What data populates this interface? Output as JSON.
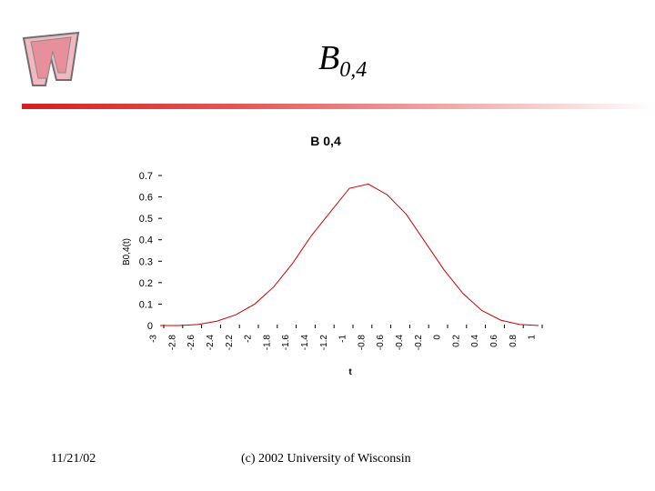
{
  "slide": {
    "title_main": "B",
    "title_sub": "0,4",
    "footer_date": "11/21/02",
    "footer_copyright": "(c) 2002 University of Wisconsin",
    "accent_color": "#d42020",
    "logo_icon": "university-w-logo-icon"
  },
  "chart_data": {
    "type": "line",
    "title": "B 0,4",
    "xlabel": "t",
    "ylabel": "B0,4(t)",
    "xlim": [
      -3,
      1
    ],
    "ylim": [
      0,
      0.7
    ],
    "xticks": [
      "-3",
      "-2.8",
      "-2.6",
      "-2.4",
      "-2.2",
      "-2",
      "-1.8",
      "-1.6",
      "-1.4",
      "-1.2",
      "-1",
      "-0.8",
      "-0.6",
      "-0.4",
      "-0.2",
      "0",
      "0.2",
      "0.4",
      "0.6",
      "0.8",
      "1"
    ],
    "yticks": [
      "0",
      "0.1",
      "0.2",
      "0.3",
      "0.4",
      "0.5",
      "0.6",
      "0.7"
    ],
    "grid": false,
    "line_color": "#cc0000",
    "series": [
      {
        "x": [
          -3,
          -2.8,
          -2.6,
          -2.4,
          -2.2,
          -2,
          -1.8,
          -1.6,
          -1.4,
          -1.2,
          -1,
          -0.8,
          -0.6,
          -0.4,
          -0.2,
          0,
          0.2,
          0.4,
          0.6,
          0.8,
          1
        ],
        "values": [
          0,
          0,
          0.005,
          0.02,
          0.05,
          0.1,
          0.18,
          0.29,
          0.42,
          0.53,
          0.64,
          0.66,
          0.61,
          0.52,
          0.39,
          0.26,
          0.15,
          0.07,
          0.025,
          0.005,
          0
        ]
      }
    ]
  }
}
